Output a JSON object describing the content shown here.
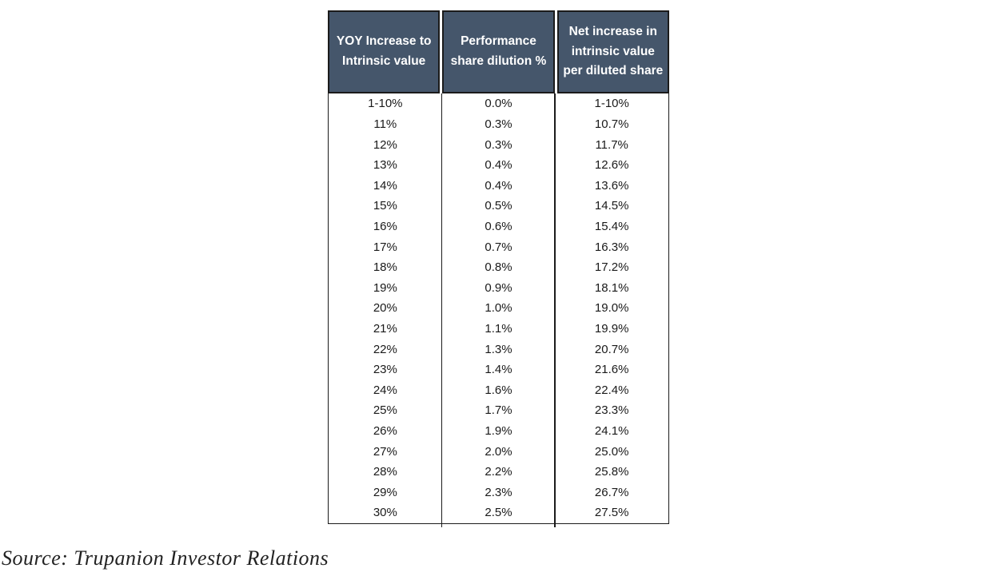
{
  "colors": {
    "header_bg": "#45566B",
    "header_text": "#FFFFFF",
    "grid_line": "#1B1B1B",
    "body_text": "#1A1A1A"
  },
  "source_note": "Source: Trupanion Investor Relations",
  "chart_data": {
    "type": "table",
    "columns": [
      "YOY Increase to\nIntrinsic value",
      "Performance\nshare dilution %",
      "Net increase in\nintrinsic value\nper diluted share"
    ],
    "rows": [
      [
        "1-10%",
        "0.0%",
        "1-10%"
      ],
      [
        "11%",
        "0.3%",
        "10.7%"
      ],
      [
        "12%",
        "0.3%",
        "11.7%"
      ],
      [
        "13%",
        "0.4%",
        "12.6%"
      ],
      [
        "14%",
        "0.4%",
        "13.6%"
      ],
      [
        "15%",
        "0.5%",
        "14.5%"
      ],
      [
        "16%",
        "0.6%",
        "15.4%"
      ],
      [
        "17%",
        "0.7%",
        "16.3%"
      ],
      [
        "18%",
        "0.8%",
        "17.2%"
      ],
      [
        "19%",
        "0.9%",
        "18.1%"
      ],
      [
        "20%",
        "1.0%",
        "19.0%"
      ],
      [
        "21%",
        "1.1%",
        "19.9%"
      ],
      [
        "22%",
        "1.3%",
        "20.7%"
      ],
      [
        "23%",
        "1.4%",
        "21.6%"
      ],
      [
        "24%",
        "1.6%",
        "22.4%"
      ],
      [
        "25%",
        "1.7%",
        "23.3%"
      ],
      [
        "26%",
        "1.9%",
        "24.1%"
      ],
      [
        "27%",
        "2.0%",
        "25.0%"
      ],
      [
        "28%",
        "2.2%",
        "25.8%"
      ],
      [
        "29%",
        "2.3%",
        "26.7%"
      ],
      [
        "30%",
        "2.5%",
        "27.5%"
      ]
    ]
  }
}
